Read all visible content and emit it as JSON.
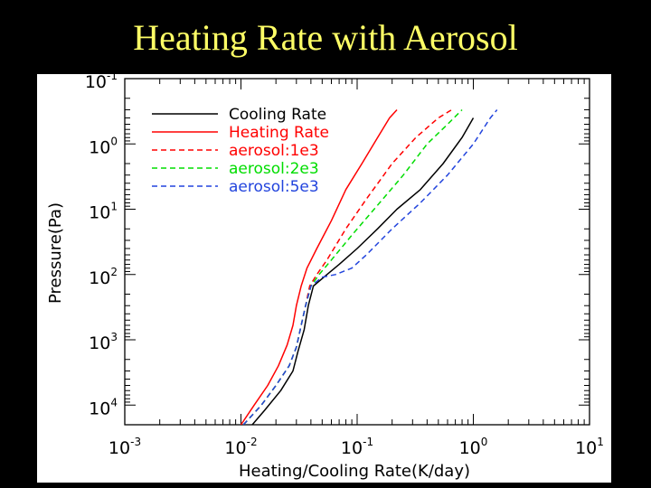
{
  "slide": {
    "title": "Heating Rate with Aerosol"
  },
  "chart_data": {
    "type": "line",
    "xlabel": "Heating/Cooling Rate(K/day)",
    "ylabel": "Pressure(Pa)",
    "x_scale": "log",
    "y_scale": "log",
    "y_inverted": true,
    "xlim": [
      0.001,
      10
    ],
    "ylim": [
      0.1,
      20000
    ],
    "x_ticks": [
      {
        "value": 0.001,
        "base": "10",
        "exp": "-3"
      },
      {
        "value": 0.01,
        "base": "10",
        "exp": "-2"
      },
      {
        "value": 0.1,
        "base": "10",
        "exp": "-1"
      },
      {
        "value": 1,
        "base": "10",
        "exp": "0"
      },
      {
        "value": 10,
        "base": "10",
        "exp": "1"
      }
    ],
    "y_ticks": [
      {
        "value": 0.1,
        "base": "10",
        "exp": "-1"
      },
      {
        "value": 1,
        "base": "10",
        "exp": "0"
      },
      {
        "value": 10,
        "base": "10",
        "exp": "1"
      },
      {
        "value": 100,
        "base": "10",
        "exp": "2"
      },
      {
        "value": 1000,
        "base": "10",
        "exp": "3"
      },
      {
        "value": 10000,
        "base": "10",
        "exp": "4"
      }
    ],
    "legend_position": "top-left",
    "grid": false,
    "series": [
      {
        "name": "Cooling Rate",
        "color": "#000000",
        "dash": "solid",
        "points": [
          [
            0.0125,
            20000
          ],
          [
            0.016,
            12000
          ],
          [
            0.022,
            6000
          ],
          [
            0.028,
            3000
          ],
          [
            0.031,
            1500
          ],
          [
            0.035,
            700
          ],
          [
            0.038,
            300
          ],
          [
            0.042,
            150
          ],
          [
            0.055,
            100
          ],
          [
            0.07,
            70
          ],
          [
            0.1,
            40
          ],
          [
            0.15,
            20
          ],
          [
            0.22,
            10
          ],
          [
            0.35,
            5
          ],
          [
            0.55,
            2
          ],
          [
            0.8,
            0.8
          ],
          [
            1.0,
            0.4
          ]
        ]
      },
      {
        "name": "Heating Rate",
        "color": "#ff0000",
        "dash": "solid",
        "points": [
          [
            0.01,
            20000
          ],
          [
            0.013,
            10000
          ],
          [
            0.017,
            5000
          ],
          [
            0.021,
            2500
          ],
          [
            0.025,
            1200
          ],
          [
            0.028,
            600
          ],
          [
            0.03,
            300
          ],
          [
            0.033,
            150
          ],
          [
            0.037,
            80
          ],
          [
            0.045,
            40
          ],
          [
            0.06,
            15
          ],
          [
            0.08,
            5
          ],
          [
            0.11,
            2
          ],
          [
            0.15,
            0.8
          ],
          [
            0.19,
            0.4
          ],
          [
            0.22,
            0.3
          ]
        ]
      },
      {
        "name": "aerosol:1e3",
        "color": "#ff0000",
        "dash": "dashed",
        "points": [
          [
            0.0105,
            20000
          ],
          [
            0.015,
            10000
          ],
          [
            0.02,
            5000
          ],
          [
            0.026,
            2500
          ],
          [
            0.03,
            1300
          ],
          [
            0.033,
            600
          ],
          [
            0.036,
            300
          ],
          [
            0.039,
            150
          ],
          [
            0.045,
            100
          ],
          [
            0.055,
            60
          ],
          [
            0.08,
            20
          ],
          [
            0.12,
            7
          ],
          [
            0.2,
            2
          ],
          [
            0.32,
            0.8
          ],
          [
            0.5,
            0.4
          ],
          [
            0.65,
            0.3
          ]
        ]
      },
      {
        "name": "aerosol:2e3",
        "color": "#00dd00",
        "dash": "dashed",
        "points": [
          [
            0.0105,
            20000
          ],
          [
            0.015,
            10000
          ],
          [
            0.02,
            5000
          ],
          [
            0.026,
            2500
          ],
          [
            0.03,
            1300
          ],
          [
            0.033,
            600
          ],
          [
            0.036,
            300
          ],
          [
            0.04,
            150
          ],
          [
            0.047,
            100
          ],
          [
            0.06,
            60
          ],
          [
            0.09,
            25
          ],
          [
            0.14,
            10
          ],
          [
            0.25,
            3
          ],
          [
            0.4,
            1
          ],
          [
            0.6,
            0.5
          ],
          [
            0.8,
            0.3
          ]
        ]
      },
      {
        "name": "aerosol:5e3",
        "color": "#2244dd",
        "dash": "dashed",
        "points": [
          [
            0.0105,
            20000
          ],
          [
            0.015,
            10000
          ],
          [
            0.02,
            5000
          ],
          [
            0.026,
            2500
          ],
          [
            0.03,
            1300
          ],
          [
            0.033,
            600
          ],
          [
            0.036,
            300
          ],
          [
            0.04,
            150
          ],
          [
            0.05,
            110
          ],
          [
            0.065,
            100
          ],
          [
            0.09,
            80
          ],
          [
            0.12,
            50
          ],
          [
            0.2,
            20
          ],
          [
            0.35,
            8
          ],
          [
            0.6,
            3
          ],
          [
            1.0,
            1
          ],
          [
            1.4,
            0.4
          ],
          [
            1.6,
            0.3
          ]
        ]
      }
    ]
  }
}
